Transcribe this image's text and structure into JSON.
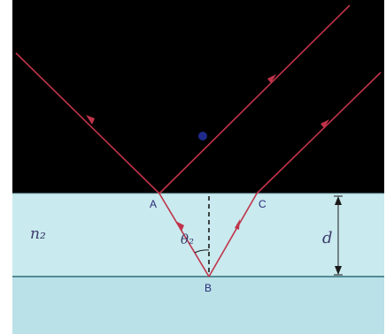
{
  "diagram": {
    "labels": {
      "point_a": "A",
      "point_b": "B",
      "point_c": "C",
      "medium_index": "n₂",
      "angle": "θ₂",
      "thickness": "d"
    },
    "colors": {
      "upper_medium": "#000000",
      "film": "#c9eaee",
      "lower_medium": "#b9e1e7",
      "ray": "#c0334a",
      "dot": "#1e2a8a"
    }
  }
}
